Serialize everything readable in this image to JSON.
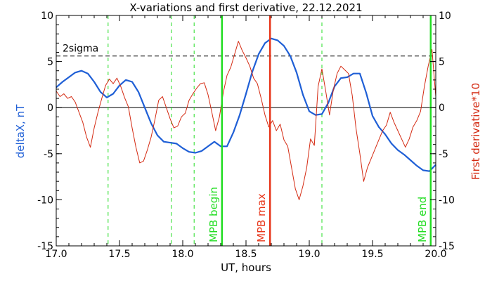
{
  "chart_data": {
    "type": "line",
    "title": "X-variations and first derivative, 22.12.2021",
    "xlabel": "UT, hours",
    "ylabel_left": "deltaX, nT",
    "ylabel_right": "First derivative*10",
    "xlim": [
      17.0,
      20.0
    ],
    "ylim": [
      -15,
      10
    ],
    "x_ticks": [
      "17.0",
      "17.5",
      "18.0",
      "18.5",
      "19.0",
      "19.5",
      "20.0"
    ],
    "y_ticks_left": [
      "-15",
      "-10",
      "-5",
      "0",
      "5",
      "10"
    ],
    "y_ticks_right": [
      "-15",
      "-10",
      "-5",
      "0",
      "5",
      "10"
    ],
    "sigma_label": "2sigma",
    "sigma_level": 5.6,
    "zero_level": 0,
    "colors": {
      "deltaX": "#1f5fd6",
      "derivative": "#d42a12",
      "markers": "#22dd22",
      "mpb_max": "#e8361a",
      "dashed_green": "#22dd22"
    },
    "dashed_markers": [
      17.41,
      17.91,
      18.09,
      19.1
    ],
    "event_markers": [
      {
        "label": "MPB begin",
        "x": 18.31,
        "color": "#22dd22"
      },
      {
        "label": "MPB max",
        "x": 18.69,
        "color": "#e8361a"
      },
      {
        "label": "MPB end",
        "x": 19.96,
        "color": "#22dd22"
      }
    ],
    "series": [
      {
        "key": "deltaX",
        "x": [
          17.0,
          17.05,
          17.1,
          17.15,
          17.2,
          17.25,
          17.3,
          17.35,
          17.4,
          17.45,
          17.5,
          17.55,
          17.6,
          17.65,
          17.7,
          17.75,
          17.8,
          17.85,
          17.9,
          17.95,
          18.0,
          18.05,
          18.1,
          18.15,
          18.2,
          18.25,
          18.3,
          18.35,
          18.4,
          18.45,
          18.5,
          18.55,
          18.6,
          18.65,
          18.7,
          18.75,
          18.8,
          18.85,
          18.9,
          18.95,
          19.0,
          19.05,
          19.1,
          19.15,
          19.2,
          19.25,
          19.3,
          19.35,
          19.4,
          19.45,
          19.5,
          19.55,
          19.6,
          19.65,
          19.7,
          19.75,
          19.8,
          19.85,
          19.9,
          19.95,
          20.0
        ],
        "y": [
          2.2,
          2.8,
          3.3,
          3.8,
          4.0,
          3.7,
          2.8,
          1.7,
          1.1,
          1.5,
          2.4,
          3.0,
          2.8,
          1.7,
          0.0,
          -1.7,
          -3.0,
          -3.7,
          -3.8,
          -3.9,
          -4.4,
          -4.8,
          -4.9,
          -4.7,
          -4.2,
          -3.7,
          -4.2,
          -4.2,
          -2.7,
          -0.8,
          1.5,
          3.9,
          5.8,
          7.0,
          7.5,
          7.3,
          6.7,
          5.6,
          3.8,
          1.4,
          -0.4,
          -0.8,
          -0.7,
          0.5,
          2.3,
          3.2,
          3.3,
          3.7,
          3.7,
          1.6,
          -0.9,
          -2.1,
          -2.9,
          -3.9,
          -4.6,
          -5.1,
          -5.7,
          -6.3,
          -6.8,
          -6.9,
          -6.2
        ]
      },
      {
        "key": "derivative",
        "x": [
          17.0,
          17.03,
          17.06,
          17.09,
          17.12,
          17.15,
          17.18,
          17.21,
          17.24,
          17.27,
          17.3,
          17.33,
          17.36,
          17.39,
          17.42,
          17.45,
          17.48,
          17.51,
          17.54,
          17.57,
          17.6,
          17.63,
          17.66,
          17.69,
          17.72,
          17.75,
          17.78,
          17.81,
          17.84,
          17.87,
          17.9,
          17.93,
          17.96,
          17.99,
          18.02,
          18.05,
          18.08,
          18.11,
          18.14,
          18.17,
          18.2,
          18.23,
          18.26,
          18.29,
          18.32,
          18.35,
          18.38,
          18.41,
          18.44,
          18.47,
          18.5,
          18.53,
          18.56,
          18.59,
          18.62,
          18.65,
          18.68,
          18.71,
          18.74,
          18.77,
          18.8,
          18.83,
          18.86,
          18.89,
          18.92,
          18.95,
          18.98,
          19.01,
          19.04,
          19.07,
          19.1,
          19.13,
          19.16,
          19.19,
          19.22,
          19.25,
          19.28,
          19.31,
          19.34,
          19.37,
          19.4,
          19.43,
          19.46,
          19.49,
          19.52,
          19.55,
          19.58,
          19.61,
          19.64,
          19.67,
          19.7,
          19.73,
          19.76,
          19.79,
          19.82,
          19.85,
          19.88,
          19.91,
          19.94,
          19.97,
          20.0
        ],
        "y": [
          1.8,
          1.2,
          1.5,
          1.0,
          1.2,
          0.6,
          -0.5,
          -1.6,
          -3.2,
          -4.3,
          -2.2,
          -0.5,
          1.0,
          2.4,
          3.1,
          2.6,
          3.2,
          2.3,
          1.1,
          0.1,
          -2.2,
          -4.3,
          -6.0,
          -5.8,
          -4.6,
          -3.2,
          -1.3,
          0.8,
          1.2,
          0.0,
          -1.2,
          -2.2,
          -2.0,
          -1.0,
          -0.6,
          0.8,
          1.5,
          2.1,
          2.6,
          2.7,
          1.4,
          -0.5,
          -2.5,
          -1.0,
          1.6,
          3.5,
          4.4,
          5.8,
          7.2,
          6.2,
          5.4,
          4.5,
          3.2,
          2.6,
          1.0,
          -0.8,
          -2.1,
          -1.4,
          -2.5,
          -1.8,
          -3.5,
          -4.2,
          -6.5,
          -8.8,
          -10.0,
          -8.5,
          -6.5,
          -3.4,
          -4.1,
          2.3,
          4.2,
          1.8,
          -0.8,
          1.9,
          3.7,
          4.5,
          4.1,
          3.7,
          1.3,
          -2.3,
          -5.0,
          -8.0,
          -6.5,
          -5.5,
          -4.5,
          -3.5,
          -2.5,
          -1.9,
          -0.5,
          -1.6,
          -2.5,
          -3.4,
          -4.3,
          -3.4,
          -2.1,
          -1.4,
          -0.4,
          2.3,
          4.5,
          6.3,
          1.2
        ]
      }
    ],
    "derivative_note": "right axis shows First derivative*10"
  }
}
